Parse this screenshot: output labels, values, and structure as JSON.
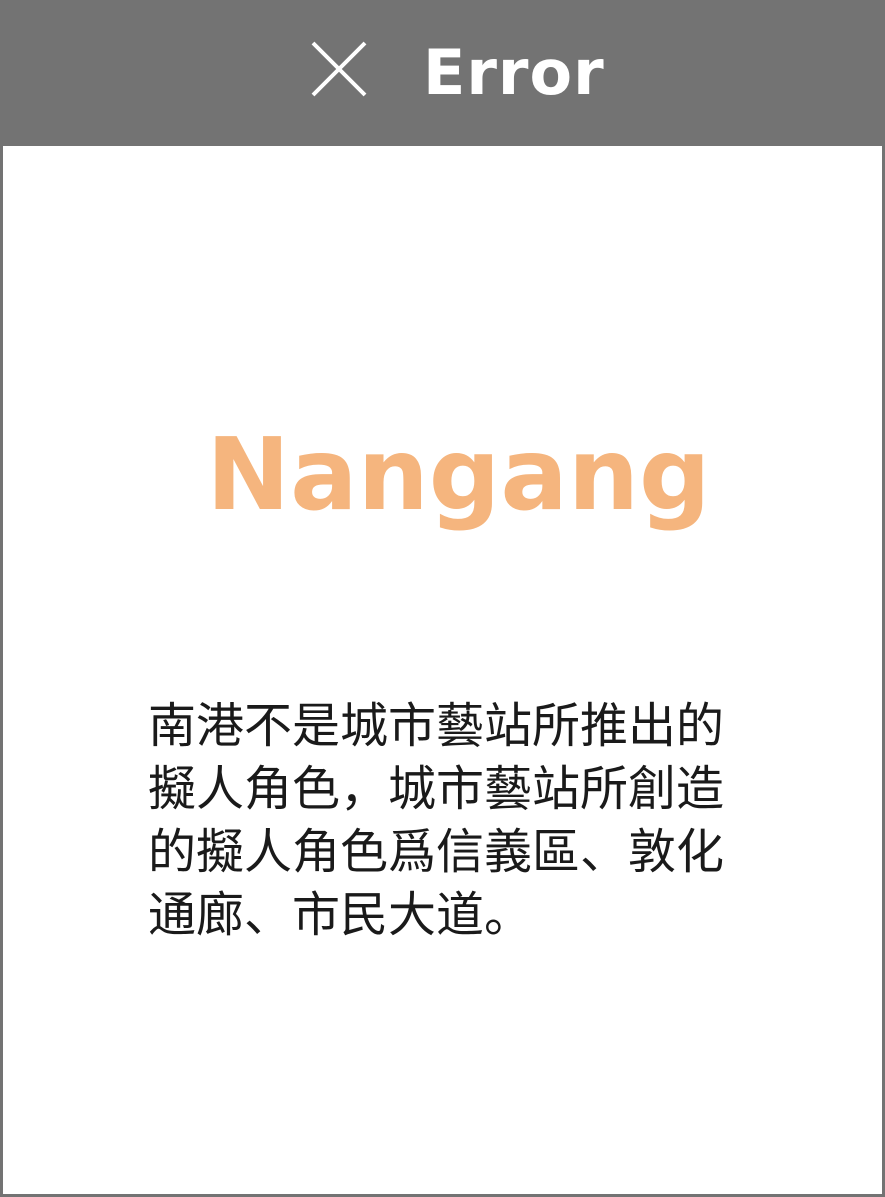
{
  "dialog": {
    "title": "Error",
    "close_icon": "close-icon",
    "heading": "Nangang",
    "message": "南港不是城市藝站所推出的擬人角色，城市藝站所創造的擬人角色爲信義區、敦化通廊、市民大道。",
    "colors": {
      "titlebar": "#737373",
      "heading": "#f5b57e",
      "text": "#1a1a1a"
    }
  }
}
